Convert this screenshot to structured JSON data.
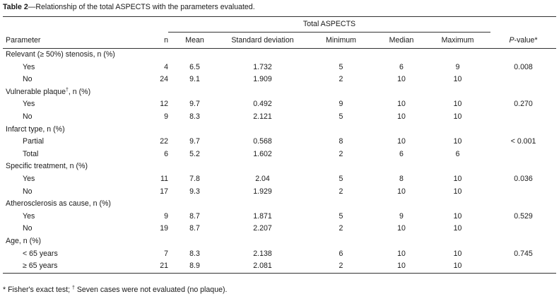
{
  "caption": {
    "label": "Table 2",
    "text": "—Relationship of the total ASPECTS with the parameters evaluated."
  },
  "headers": {
    "group": "Total ASPECTS",
    "parameter": "Parameter",
    "n": "n",
    "mean": "Mean",
    "sd": "Standard deviation",
    "min": "Minimum",
    "median": "Median",
    "max": "Maximum",
    "pvalue_italic": "P",
    "pvalue_rest": "-value*"
  },
  "groups": [
    {
      "title": "Relevant (≥ 50%) stenosis, n (%)",
      "title_sup": "",
      "title_suffix": "",
      "pvalue": "0.008",
      "rows": [
        {
          "label": "Yes",
          "n": "4",
          "mean": "6.5",
          "sd": "1.732",
          "min": "5",
          "median": "6",
          "max": "9"
        },
        {
          "label": "No",
          "n": "24",
          "mean": "9.1",
          "sd": "1.909",
          "min": "2",
          "median": "10",
          "max": "10"
        }
      ]
    },
    {
      "title": "Vulnerable plaque",
      "title_sup": "†",
      "title_suffix": ", n (%)",
      "pvalue": "0.270",
      "rows": [
        {
          "label": "Yes",
          "n": "12",
          "mean": "9.7",
          "sd": "0.492",
          "min": "9",
          "median": "10",
          "max": "10"
        },
        {
          "label": "No",
          "n": "9",
          "mean": "8.3",
          "sd": "2.121",
          "min": "5",
          "median": "10",
          "max": "10"
        }
      ]
    },
    {
      "title": "Infarct type, n (%)",
      "title_sup": "",
      "title_suffix": "",
      "pvalue": "< 0.001",
      "rows": [
        {
          "label": "Partial",
          "n": "22",
          "mean": "9.7",
          "sd": "0.568",
          "min": "8",
          "median": "10",
          "max": "10"
        },
        {
          "label": "Total",
          "n": "6",
          "mean": "5.2",
          "sd": "1.602",
          "min": "2",
          "median": "6",
          "max": "6"
        }
      ]
    },
    {
      "title": "Specific treatment, n (%)",
      "title_sup": "",
      "title_suffix": "",
      "pvalue": "0.036",
      "rows": [
        {
          "label": "Yes",
          "n": "11",
          "mean": "7.8",
          "sd": "2.04",
          "min": "5",
          "median": "8",
          "max": "10"
        },
        {
          "label": "No",
          "n": "17",
          "mean": "9.3",
          "sd": "1.929",
          "min": "2",
          "median": "10",
          "max": "10"
        }
      ]
    },
    {
      "title": "Atherosclerosis as cause, n (%)",
      "title_sup": "",
      "title_suffix": "",
      "pvalue": "0.529",
      "rows": [
        {
          "label": "Yes",
          "n": "9",
          "mean": "8.7",
          "sd": "1.871",
          "min": "5",
          "median": "9",
          "max": "10"
        },
        {
          "label": "No",
          "n": "19",
          "mean": "8.7",
          "sd": "2.207",
          "min": "2",
          "median": "10",
          "max": "10"
        }
      ]
    },
    {
      "title": "Age, n (%)",
      "title_sup": "",
      "title_suffix": "",
      "pvalue": "0.745",
      "rows": [
        {
          "label": "< 65 years",
          "n": "7",
          "mean": "8.3",
          "sd": "2.138",
          "min": "6",
          "median": "10",
          "max": "10"
        },
        {
          "label": "≥ 65 years",
          "n": "21",
          "mean": "8.9",
          "sd": "2.081",
          "min": "2",
          "median": "10",
          "max": "10"
        }
      ]
    }
  ],
  "footnote": {
    "star": "* Fisher's exact test; ",
    "dagger": "†",
    "text": " Seven cases were not evaluated (no plaque)."
  }
}
